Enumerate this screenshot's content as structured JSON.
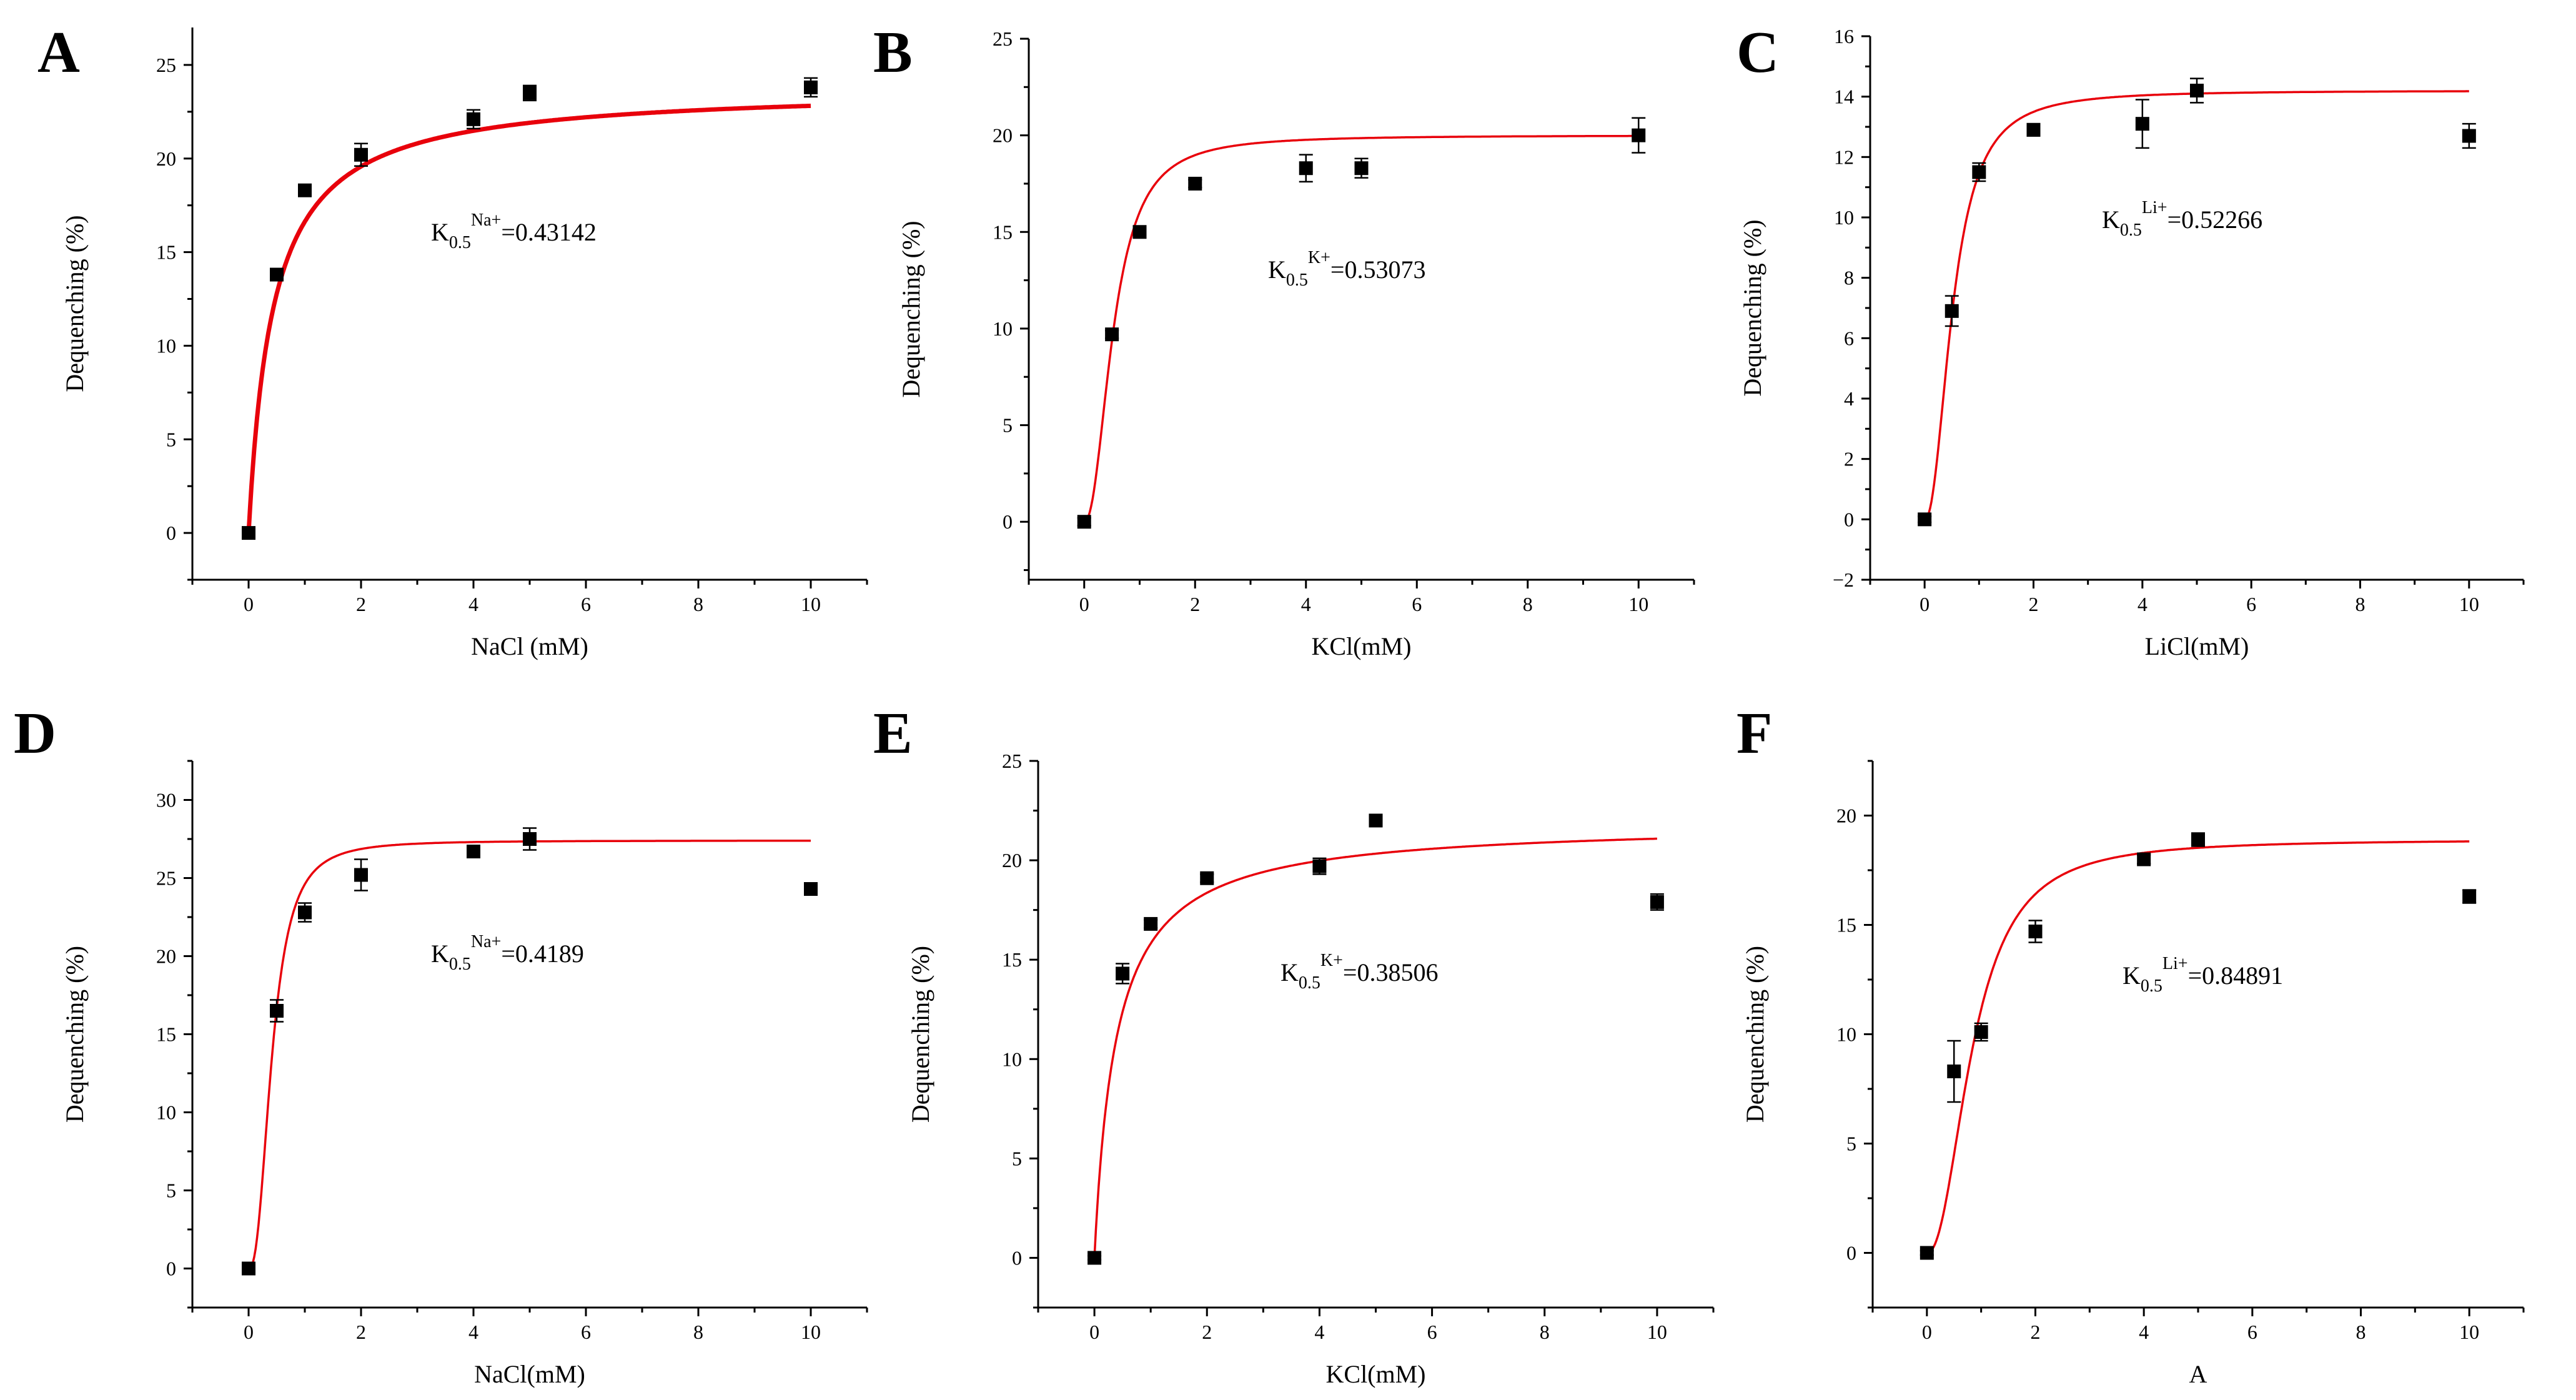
{
  "chart_data": [
    {
      "type": "scatter",
      "panel": "A",
      "xlabel": "NaCl (mM)",
      "ylabel": "Dequenching (%)",
      "xlim": [
        -1,
        11
      ],
      "ylim": [
        -2.5,
        27
      ],
      "xticks": [
        0,
        2,
        4,
        6,
        8,
        10
      ],
      "yticks": [
        0,
        5,
        10,
        15,
        20,
        25
      ],
      "annotation": {
        "base": "K",
        "sub": "0.5",
        "sup": "Na+",
        "value": "=0.43142"
      },
      "series": [
        {
          "name": "data",
          "x": [
            0,
            0.5,
            1,
            2,
            4,
            5,
            10
          ],
          "y": [
            0,
            13.8,
            18.3,
            20.2,
            22.1,
            23.5,
            23.8
          ],
          "err": [
            0.2,
            0.3,
            0.2,
            0.6,
            0.5,
            0.4,
            0.5
          ]
        }
      ],
      "fit": {
        "model": "hill",
        "vmax": 23.8,
        "k": 0.43142,
        "n": 1,
        "color": "#e8000b",
        "stroke_weight": "thick"
      }
    },
    {
      "type": "scatter",
      "panel": "B",
      "xlabel": "KCl(mM)",
      "ylabel": "Dequenching (%)",
      "xlim": [
        -1,
        11
      ],
      "ylim": [
        -3,
        25
      ],
      "xticks": [
        0,
        2,
        4,
        6,
        8,
        10
      ],
      "yticks": [
        0,
        5,
        10,
        15,
        20,
        25
      ],
      "annotation": {
        "base": "K",
        "sub": "0.5",
        "sup": "K+",
        "value": "=0.53073"
      },
      "series": [
        {
          "name": "data",
          "x": [
            0,
            0.5,
            1,
            2,
            4,
            5,
            10
          ],
          "y": [
            0,
            9.7,
            15.0,
            17.5,
            18.3,
            18.3,
            20.0
          ],
          "err": [
            0.2,
            0.2,
            0.3,
            0.2,
            0.7,
            0.5,
            0.9
          ]
        }
      ],
      "fit": {
        "model": "hill",
        "vmax": 20.0,
        "k": 0.53073,
        "n": 2.2,
        "color": "#e8000b",
        "stroke_weight": "thin"
      }
    },
    {
      "type": "scatter",
      "panel": "C",
      "xlabel": "LiCl(mM)",
      "ylabel": "Dequenching (%)",
      "xlim": [
        -1,
        11
      ],
      "ylim": [
        -2,
        16
      ],
      "xticks": [
        0,
        2,
        4,
        6,
        8,
        10
      ],
      "yticks": [
        -2,
        0,
        2,
        4,
        6,
        8,
        10,
        12,
        14,
        16
      ],
      "annotation": {
        "base": "K",
        "sub": "0.5",
        "sup": "Li+",
        "value": "=0.52266"
      },
      "series": [
        {
          "name": "data",
          "x": [
            0,
            0.5,
            1,
            2,
            4,
            5,
            10
          ],
          "y": [
            0,
            6.9,
            11.5,
            12.9,
            13.1,
            14.2,
            12.7
          ],
          "err": [
            0.1,
            0.5,
            0.3,
            0.2,
            0.8,
            0.4,
            0.4
          ]
        }
      ],
      "fit": {
        "model": "hill",
        "vmax": 14.2,
        "k": 0.52266,
        "n": 2.2,
        "color": "#e8000b",
        "stroke_weight": "thin"
      }
    },
    {
      "type": "scatter",
      "panel": "D",
      "xlabel": "NaCl(mM)",
      "ylabel": "Dequenching (%)",
      "xlim": [
        -1,
        11
      ],
      "ylim": [
        -2.5,
        32.5
      ],
      "xticks": [
        0,
        2,
        4,
        6,
        8,
        10
      ],
      "yticks": [
        0,
        5,
        10,
        15,
        20,
        25,
        30
      ],
      "annotation": {
        "base": "K",
        "sub": "0.5",
        "sup": "Na+",
        "value": "=0.4189"
      },
      "series": [
        {
          "name": "data",
          "x": [
            0,
            0.5,
            1,
            2,
            4,
            5,
            10
          ],
          "y": [
            0,
            16.5,
            22.8,
            25.2,
            26.7,
            27.5,
            24.3
          ],
          "err": [
            0.2,
            0.7,
            0.6,
            1.0,
            0.3,
            0.7,
            0.2
          ]
        }
      ],
      "fit": {
        "model": "hill",
        "vmax": 27.4,
        "k": 0.4189,
        "n": 2.5,
        "color": "#e8000b",
        "stroke_weight": "thin"
      }
    },
    {
      "type": "scatter",
      "panel": "E",
      "xlabel": "KCl(mM)",
      "ylabel": "Dequenching (%)",
      "xlim": [
        -1,
        11
      ],
      "ylim": [
        -2.5,
        25
      ],
      "xticks": [
        0,
        2,
        4,
        6,
        8,
        10
      ],
      "yticks": [
        0,
        5,
        10,
        15,
        20,
        25
      ],
      "annotation": {
        "base": "K",
        "sub": "0.5",
        "sup": "K+",
        "value": "=0.38506"
      },
      "series": [
        {
          "name": "data",
          "x": [
            0,
            0.5,
            1,
            2,
            4,
            5,
            10
          ],
          "y": [
            0,
            14.3,
            16.8,
            19.1,
            19.7,
            22.0,
            17.9
          ],
          "err": [
            0.1,
            0.5,
            0.2,
            0.2,
            0.4,
            0.2,
            0.4
          ]
        }
      ],
      "fit": {
        "model": "hill",
        "vmax": 21.9,
        "k": 0.38506,
        "n": 1,
        "color": "#e8000b",
        "stroke_weight": "thin"
      }
    },
    {
      "type": "scatter",
      "panel": "F",
      "xlabel": "A",
      "ylabel": "Dequenching (%)",
      "xlim": [
        -1,
        11
      ],
      "ylim": [
        -2.5,
        22.5
      ],
      "xticks": [
        0,
        2,
        4,
        6,
        8,
        10
      ],
      "yticks": [
        0,
        5,
        10,
        15,
        20
      ],
      "annotation": {
        "base": "K",
        "sub": "0.5",
        "sup": "Li+",
        "value": "=0.84891"
      },
      "series": [
        {
          "name": "data",
          "x": [
            0,
            0.5,
            1,
            2,
            4,
            5,
            10
          ],
          "y": [
            0,
            8.3,
            10.1,
            14.7,
            18.0,
            18.9,
            16.3
          ],
          "err": [
            0.1,
            1.4,
            0.4,
            0.5,
            0.2,
            0.3,
            0.3
          ]
        }
      ],
      "fit": {
        "model": "hill",
        "vmax": 18.9,
        "k": 0.84891,
        "n": 2.2,
        "color": "#e8000b",
        "stroke_weight": "thin"
      }
    }
  ]
}
